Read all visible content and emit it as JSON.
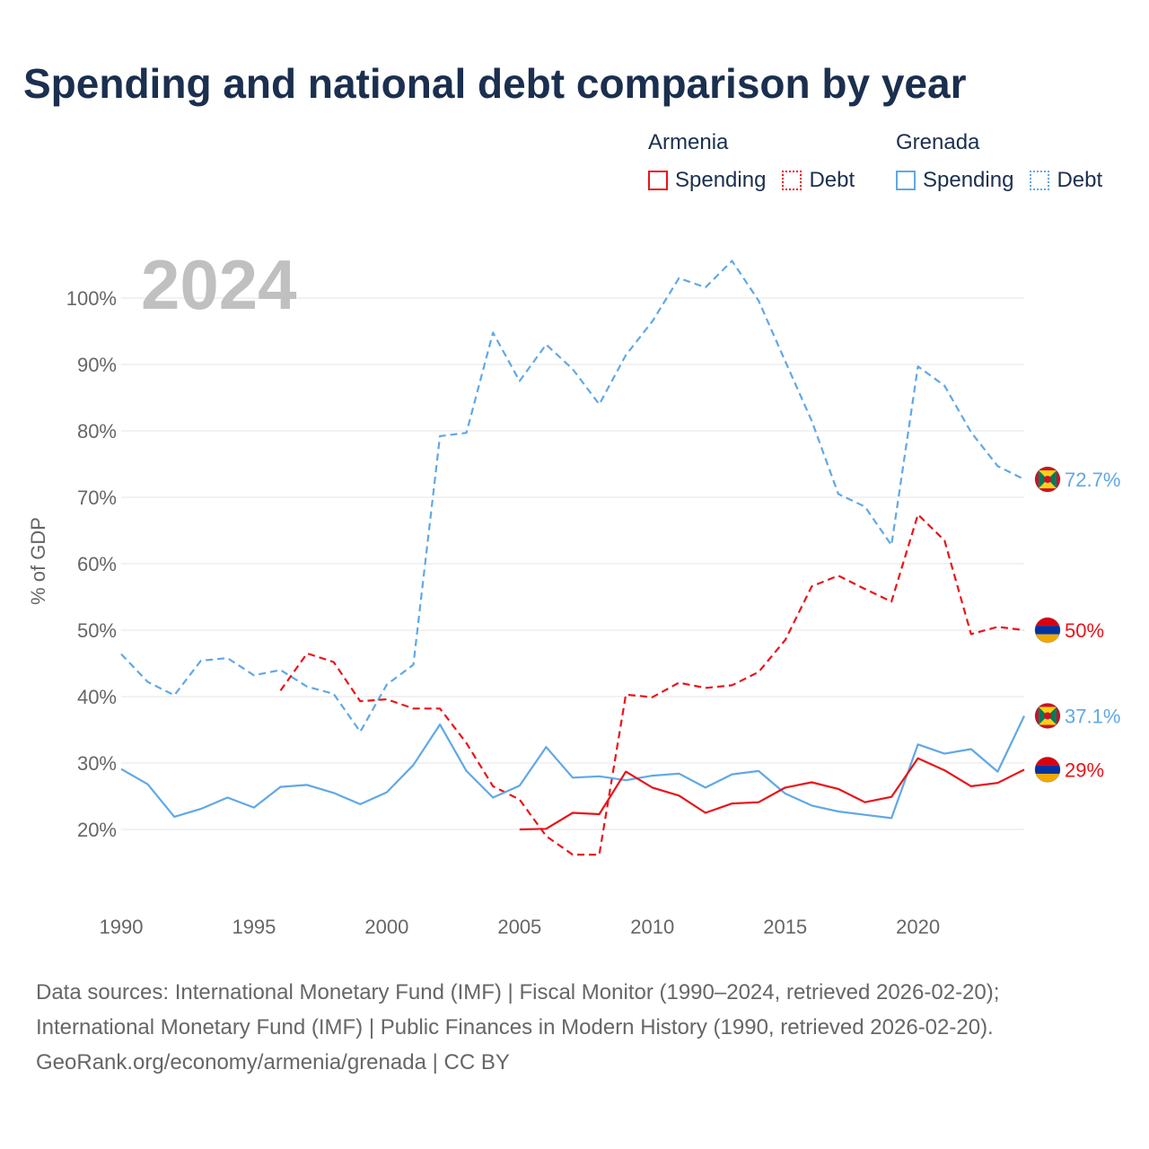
{
  "header": {
    "title": "Spending and national debt comparison by year"
  },
  "legend": {
    "groups": [
      {
        "name": "Armenia",
        "color": "#e8141a",
        "spending_label": "Spending",
        "debt_label": "Debt"
      },
      {
        "name": "Grenada",
        "color": "#60a8e6",
        "spending_label": "Spending",
        "debt_label": "Debt"
      }
    ]
  },
  "chart_data": {
    "type": "line",
    "title": "Spending and national debt comparison by year",
    "year_label": "2024",
    "ylabel": "% of GDP",
    "xlabel": "",
    "xlim": [
      1990,
      2024
    ],
    "ylim": [
      10,
      105
    ],
    "x_ticks": [
      1990,
      1995,
      2000,
      2005,
      2010,
      2015,
      2020
    ],
    "x_tick_labels": [
      "1990",
      "1995",
      "2000",
      "2005",
      "2010",
      "2015",
      "2020"
    ],
    "y_ticks": [
      20,
      30,
      40,
      50,
      60,
      70,
      80,
      90,
      100
    ],
    "y_tick_labels": [
      "20%",
      "30%",
      "40%",
      "50%",
      "60%",
      "70%",
      "80%",
      "90%",
      "100%"
    ],
    "grid": true,
    "series": [
      {
        "name": "Grenada Debt",
        "country": "Grenada",
        "metric": "Debt",
        "color": "#60a8e6",
        "dash": "dashed",
        "x": [
          1990,
          1991,
          1992,
          1993,
          1994,
          1995,
          1996,
          1997,
          1998,
          1999,
          2000,
          2001,
          2002,
          2003,
          2004,
          2005,
          2006,
          2007,
          2008,
          2009,
          2010,
          2011,
          2012,
          2013,
          2014,
          2015,
          2016,
          2017,
          2018,
          2019,
          2020,
          2021,
          2022,
          2023,
          2024
        ],
        "values": [
          46.4,
          42.2,
          40.2,
          45.4,
          45.8,
          43.2,
          44.0,
          41.5,
          40.4,
          34.7,
          41.8,
          44.8,
          79.2,
          79.7,
          94.8,
          87.5,
          93.0,
          89.3,
          84.0,
          91.4,
          96.5,
          103.0,
          101.6,
          105.6,
          99.6,
          90.5,
          81.5,
          70.5,
          68.6,
          62.8,
          89.7,
          86.8,
          79.8,
          74.7,
          72.7
        ],
        "end_label": "72.7%"
      },
      {
        "name": "Armenia Debt",
        "country": "Armenia",
        "metric": "Debt",
        "color": "#e8141a",
        "dash": "dashed",
        "x": [
          1996,
          1997,
          1998,
          1999,
          2000,
          2001,
          2002,
          2003,
          2004,
          2005,
          2006,
          2007,
          2008,
          2009,
          2010,
          2011,
          2012,
          2013,
          2014,
          2015,
          2016,
          2017,
          2018,
          2019,
          2020,
          2021,
          2022,
          2023,
          2024
        ],
        "values": [
          40.9,
          46.5,
          45.2,
          39.3,
          39.6,
          38.2,
          38.2,
          33.0,
          26.5,
          24.5,
          19.0,
          16.2,
          16.2,
          40.3,
          39.9,
          42.1,
          41.3,
          41.7,
          43.7,
          48.5,
          56.6,
          58.2,
          56.2,
          54.3,
          67.4,
          63.5,
          49.4,
          50.5,
          50.0
        ],
        "end_label": "50%"
      },
      {
        "name": "Grenada Spending",
        "country": "Grenada",
        "metric": "Spending",
        "color": "#60a8e6",
        "dash": "solid",
        "x": [
          1990,
          1991,
          1992,
          1993,
          1994,
          1995,
          1996,
          1997,
          1998,
          1999,
          2000,
          2001,
          2002,
          2003,
          2004,
          2005,
          2006,
          2007,
          2008,
          2009,
          2010,
          2011,
          2012,
          2013,
          2014,
          2015,
          2016,
          2017,
          2018,
          2019,
          2020,
          2021,
          2022,
          2023,
          2024
        ],
        "values": [
          29.1,
          26.8,
          21.9,
          23.1,
          24.8,
          23.3,
          26.4,
          26.7,
          25.5,
          23.8,
          25.6,
          29.7,
          35.8,
          28.8,
          24.8,
          26.6,
          32.4,
          27.8,
          28.0,
          27.4,
          28.1,
          28.4,
          26.3,
          28.3,
          28.8,
          25.4,
          23.6,
          22.7,
          22.2,
          21.7,
          32.8,
          31.4,
          32.1,
          28.7,
          37.1
        ],
        "end_label": "37.1%"
      },
      {
        "name": "Armenia Spending",
        "country": "Armenia",
        "metric": "Spending",
        "color": "#e8141a",
        "dash": "solid",
        "x": [
          2005,
          2006,
          2007,
          2008,
          2009,
          2010,
          2011,
          2012,
          2013,
          2014,
          2015,
          2016,
          2017,
          2018,
          2019,
          2020,
          2021,
          2022,
          2023,
          2024
        ],
        "values": [
          20.0,
          20.1,
          22.5,
          22.3,
          28.7,
          26.3,
          25.1,
          22.5,
          23.9,
          24.1,
          26.3,
          27.1,
          26.1,
          24.1,
          24.9,
          30.7,
          28.9,
          26.5,
          27.0,
          29.0
        ],
        "end_label": "29%"
      }
    ],
    "end_markers": [
      {
        "country": "Grenada",
        "flag": "grenada-flag",
        "value": 72.7,
        "label_y": 72.7
      },
      {
        "country": "Armenia",
        "flag": "armenia-flag",
        "value": 50.0,
        "label_y": 50.0
      },
      {
        "country": "Grenada",
        "flag": "grenada-flag",
        "value": 37.1,
        "label_y": 37.1
      },
      {
        "country": "Armenia",
        "flag": "armenia-flag",
        "value": 29.0,
        "label_y": 29.0
      }
    ]
  },
  "footer": {
    "line1": "Data sources: International Monetary Fund (IMF) | Fiscal Monitor (1990–2024, retrieved 2026-02-20);",
    "line2": "International Monetary Fund (IMF) | Public Finances in Modern History (1990, retrieved 2026-02-20).",
    "line3": "GeoRank.org/economy/armenia/grenada | CC BY"
  }
}
